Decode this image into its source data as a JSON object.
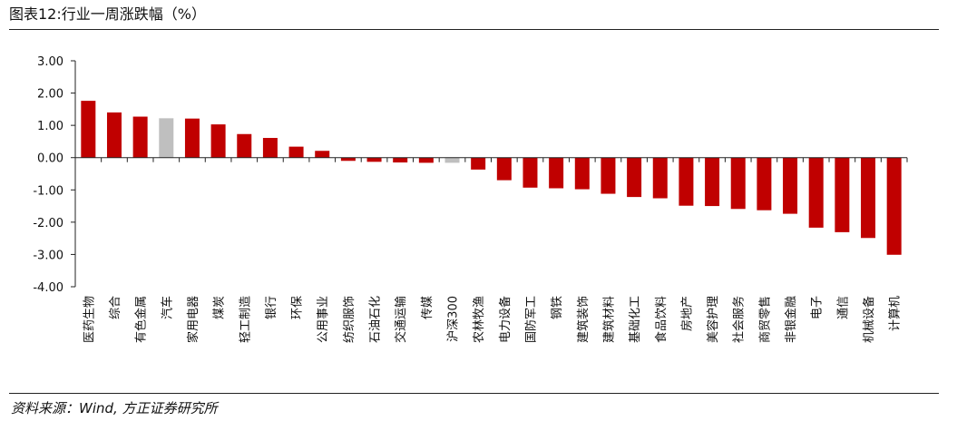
{
  "header": {
    "title": "图表12:行业一周涨跌幅（%）"
  },
  "footer": {
    "source": "资料来源：Wind, 方正证券研究所"
  },
  "colors": {
    "industry_bar": "#c00000",
    "index_bar": "#bfbfbf",
    "axis": "#222222"
  },
  "chart_data": {
    "type": "bar",
    "title": "行业一周涨跌幅（%）",
    "xlabel": "",
    "ylabel": "",
    "ylim": [
      -4,
      3
    ],
    "yticks": [
      "3.00",
      "2.00",
      "1.00",
      "0.00",
      "-1.00",
      "-2.00",
      "-3.00",
      "-4.00"
    ],
    "grid": false,
    "legend": "none",
    "categories": [
      "医药生物",
      "综合",
      "有色金属",
      "汽车",
      "家用电器",
      "煤炭",
      "轻工制造",
      "银行",
      "环保",
      "公用事业",
      "纺织服饰",
      "石油石化",
      "交通运输",
      "传媒",
      "沪深300",
      "农林牧渔",
      "电力设备",
      "国防军工",
      "钢铁",
      "建筑装饰",
      "建筑材料",
      "基础化工",
      "食品饮料",
      "房地产",
      "美容护理",
      "社会服务",
      "商贸零售",
      "非银金融",
      "电子",
      "通信",
      "机械设备",
      "计算机"
    ],
    "values": [
      1.76,
      1.4,
      1.27,
      1.22,
      1.21,
      1.03,
      0.73,
      0.61,
      0.34,
      0.21,
      -0.1,
      -0.13,
      -0.15,
      -0.16,
      -0.16,
      -0.37,
      -0.7,
      -0.93,
      -0.95,
      -0.98,
      -1.12,
      -1.22,
      -1.26,
      -1.49,
      -1.5,
      -1.59,
      -1.63,
      -1.74,
      -2.17,
      -2.31,
      -2.49,
      -3.01
    ],
    "highlight": [
      "汽车",
      "沪深300"
    ]
  }
}
